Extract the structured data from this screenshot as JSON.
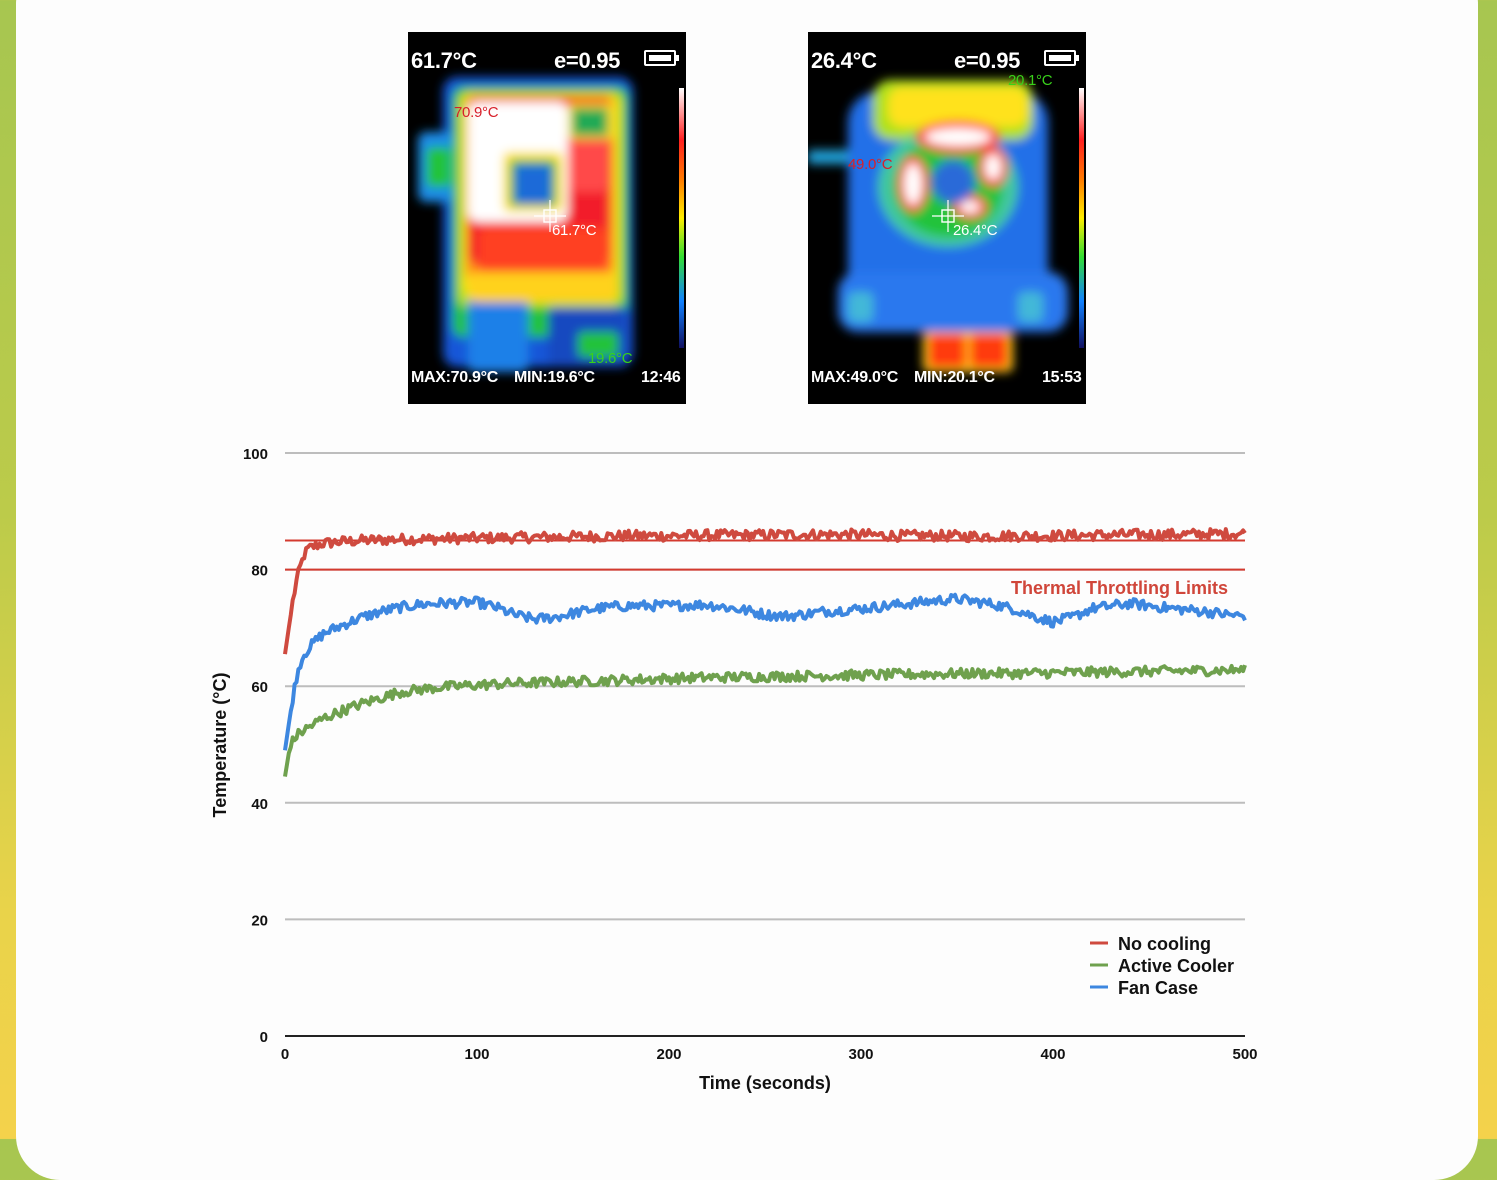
{
  "colors": {
    "no_cooling": "#cf4a3f",
    "active_cooler": "#6fa14e",
    "fan_case": "#3d87e0",
    "throttle_line": "#d43a2f",
    "grid": "#bdbdbd"
  },
  "thermal_images": [
    {
      "center_temp": "61.7°C",
      "emissivity": "e=0.95",
      "max_label": "MAX:70.9°C",
      "min_label": "MIN:19.6°C",
      "time": "12:46",
      "spot_max": "70.9°C",
      "spot_center": "61.7°C",
      "spot_min": "19.6°C",
      "icon": "battery-icon"
    },
    {
      "center_temp": "26.4°C",
      "emissivity": "e=0.95",
      "max_label": "MAX:49.0°C",
      "min_label": "MIN:20.1°C",
      "time": "15:53",
      "spot_max": "49.0°C",
      "spot_center": "26.4°C",
      "spot_min": "20.1°C",
      "icon": "battery-icon"
    }
  ],
  "chart_data": {
    "type": "line",
    "title": "",
    "xlabel": "Time (seconds)",
    "ylabel": "Temperature (°C)",
    "xlim": [
      0,
      500
    ],
    "ylim": [
      0,
      100
    ],
    "xticks": [
      0,
      100,
      200,
      300,
      400,
      500
    ],
    "yticks": [
      0,
      20,
      40,
      60,
      80,
      100
    ],
    "grid": "horizontal",
    "legend_position": "bottom-right",
    "annotations": [
      {
        "text": "Thermal Throttling Limits",
        "y": 80
      },
      {
        "text": "",
        "y": 85
      }
    ],
    "series": [
      {
        "name": "No cooling",
        "x": [
          0,
          2,
          4,
          6,
          8,
          10,
          12,
          15,
          20,
          30,
          40,
          60,
          80,
          100,
          120,
          140,
          160,
          180,
          200,
          220,
          240,
          260,
          280,
          300,
          320,
          340,
          360,
          380,
          400,
          420,
          440,
          460,
          480,
          500
        ],
        "values": [
          65.5,
          70,
          74.5,
          78,
          80.5,
          82.5,
          83.5,
          84,
          84.5,
          84.8,
          85,
          85.2,
          85.3,
          85.4,
          85.5,
          85.6,
          85.7,
          85.8,
          85.8,
          85.9,
          85.9,
          86,
          86,
          86,
          85.8,
          85.8,
          85.7,
          85.8,
          85.8,
          85.9,
          86,
          86,
          86.1,
          86.2
        ]
      },
      {
        "name": "Active Cooler",
        "x": [
          0,
          2,
          4,
          6,
          10,
          15,
          20,
          30,
          40,
          50,
          60,
          80,
          100,
          120,
          140,
          160,
          180,
          200,
          220,
          240,
          260,
          280,
          300,
          320,
          340,
          360,
          380,
          400,
          420,
          440,
          460,
          480,
          500
        ],
        "values": [
          44.5,
          48.5,
          50.5,
          51.5,
          52.5,
          53.5,
          54.5,
          55.8,
          57,
          58,
          59,
          59.8,
          60.2,
          60.5,
          60.7,
          60.9,
          61.1,
          61.3,
          61.5,
          61.6,
          61.7,
          61.8,
          61.9,
          62,
          62.1,
          62.2,
          62.2,
          62.3,
          62.4,
          62.5,
          62.6,
          62.7,
          62.8
        ]
      },
      {
        "name": "Fan Case",
        "x": [
          0,
          2,
          4,
          6,
          8,
          10,
          15,
          20,
          30,
          40,
          50,
          60,
          70,
          80,
          90,
          100,
          110,
          120,
          130,
          140,
          150,
          160,
          170,
          180,
          200,
          220,
          230,
          240,
          250,
          260,
          270,
          280,
          300,
          320,
          340,
          350,
          360,
          370,
          380,
          390,
          400,
          410,
          420,
          440,
          460,
          480,
          490,
          500
        ],
        "values": [
          49,
          53.5,
          58,
          61.5,
          64,
          65.5,
          67.5,
          69,
          70.5,
          71.8,
          72.8,
          73.5,
          74,
          74.2,
          74.3,
          74.4,
          73.5,
          72.2,
          71.5,
          71.8,
          72.5,
          73.2,
          73.6,
          73.8,
          73.8,
          74,
          73.5,
          73,
          72.3,
          72,
          72.3,
          72.8,
          73.3,
          74,
          74.7,
          75,
          74.5,
          74,
          73.2,
          72,
          71,
          71.8,
          73.3,
          74.2,
          73.4,
          72.8,
          72.3,
          72
        ]
      }
    ]
  }
}
